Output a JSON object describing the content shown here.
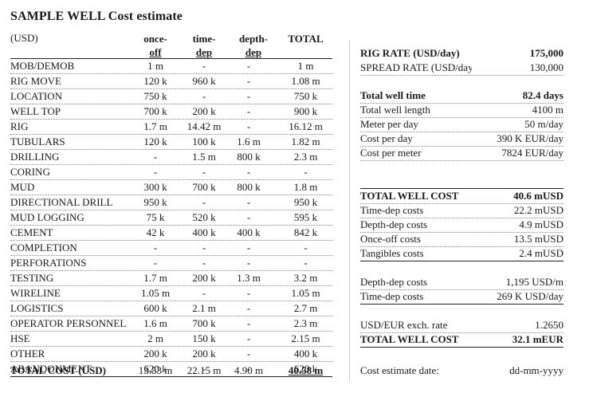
{
  "title": "SAMPLE WELL Cost estimate",
  "unit": "(USD)",
  "headers": {
    "once_off_1": "once-",
    "once_off_2": "off",
    "time_dep_1": "time-",
    "time_dep_2": "dep",
    "depth_dep_1": "depth-",
    "depth_dep_2": "dep",
    "total": "TOTAL"
  },
  "rows": [
    {
      "name": "MOB/DEMOB",
      "once": "1 m",
      "time": "-",
      "depth": "-",
      "total": "1 m"
    },
    {
      "name": "RIG MOVE",
      "once": "120 k",
      "time": "960 k",
      "depth": "-",
      "total": "1.08 m"
    },
    {
      "name": "LOCATION",
      "once": "750 k",
      "time": "-",
      "depth": "-",
      "total": "750 k"
    },
    {
      "name": "WELL TOP",
      "once": "700 k",
      "time": "200 k",
      "depth": "-",
      "total": "900 k"
    },
    {
      "name": "RIG",
      "once": "1.7 m",
      "time": "14.42 m",
      "depth": "-",
      "total": "16.12 m"
    },
    {
      "name": "TUBULARS",
      "once": "120 k",
      "time": "100 k",
      "depth": "1.6 m",
      "total": "1.82 m"
    },
    {
      "name": "DRILLING",
      "once": "-",
      "time": "1.5 m",
      "depth": "800 k",
      "total": "2.3 m"
    },
    {
      "name": "CORING",
      "once": "-",
      "time": "-",
      "depth": "-",
      "total": "-"
    },
    {
      "name": "MUD",
      "once": "300 k",
      "time": "700 k",
      "depth": "800 k",
      "total": "1.8 m"
    },
    {
      "name": "DIRECTIONAL DRILL",
      "once": "950 k",
      "time": "-",
      "depth": "-",
      "total": "950 k"
    },
    {
      "name": "MUD LOGGING",
      "once": "75 k",
      "time": "520 k",
      "depth": "-",
      "total": "595 k"
    },
    {
      "name": "CEMENT",
      "once": "42 k",
      "time": "400 k",
      "depth": "400 k",
      "total": "842 k"
    },
    {
      "name": "COMPLETION",
      "once": "-",
      "time": "-",
      "depth": "-",
      "total": "-"
    },
    {
      "name": "PERFORATIONS",
      "once": "-",
      "time": "-",
      "depth": "-",
      "total": "-"
    },
    {
      "name": "TESTING",
      "once": "1.7 m",
      "time": "200 k",
      "depth": "1.3 m",
      "total": "3.2 m"
    },
    {
      "name": "WIRELINE",
      "once": "1.05 m",
      "time": "-",
      "depth": "-",
      "total": "1.05 m"
    },
    {
      "name": "LOGISTICS",
      "once": "600 k",
      "time": "2.1 m",
      "depth": "-",
      "total": "2.7 m"
    },
    {
      "name": "OPERATOR PERSONNEL",
      "once": "1.6 m",
      "time": "700 k",
      "depth": "-",
      "total": "2.3 m"
    },
    {
      "name": "HSE",
      "once": "2 m",
      "time": "150 k",
      "depth": "-",
      "total": "2.15 m"
    },
    {
      "name": "OTHER",
      "once": "200 k",
      "time": "200 k",
      "depth": "-",
      "total": "400 k"
    },
    {
      "name": "ABANDONMENT",
      "once": "620 k",
      "time": "-",
      "depth": "-",
      "total": "620 k"
    }
  ],
  "total_row": {
    "name": "TOTAL COST (USD)",
    "once": "13.53 m",
    "time": "22.15 m",
    "depth": "4.90 m",
    "total": "40.58 m"
  },
  "right": {
    "rig_rate_label": "RIG RATE (USD/day)",
    "rig_rate": "175,000",
    "spread_rate_label": "SPREAD RATE (USD/day)",
    "spread_rate": "130,000",
    "total_well_time_label": "Total well time",
    "total_well_time": "82.4 days",
    "total_well_length_label": "Total well length",
    "total_well_length": "4100 m",
    "meter_per_day_label": "Meter per day",
    "meter_per_day": "50 m/day",
    "cost_per_day_label": "Cost per day",
    "cost_per_day": "390 K EUR/day",
    "cost_per_meter_label": "Cost per meter",
    "cost_per_meter": "7824 EUR/day",
    "total_well_cost_label": "TOTAL WELL COST",
    "total_well_cost": "40.6 mUSD",
    "time_dep_costs_label": "Time-dep costs",
    "time_dep_costs": "22.2 mUSD",
    "depth_dep_costs_label": "Depth-dep costs",
    "depth_dep_costs": "4.9 mUSD",
    "once_off_costs_label": "Once-off costs",
    "once_off_costs": "13.5 mUSD",
    "tangibles_costs_label": "Tangibles costs",
    "tangibles_costs": "2.4 mUSD",
    "depth_dep_costs2_label": "Depth-dep costs",
    "depth_dep_costs2": "1,195 USD/m",
    "time_dep_costs2_label": "Time-dep costs",
    "time_dep_costs2": "269 K USD/day",
    "exch_rate_label": "USD/EUR exch. rate",
    "exch_rate": "1.2650",
    "total_well_cost_eur_label": "TOTAL WELL COST",
    "total_well_cost_eur": "32.1 mEUR",
    "estimate_date_label": "Cost estimate date:",
    "estimate_date": "dd-mm-yyyy"
  }
}
